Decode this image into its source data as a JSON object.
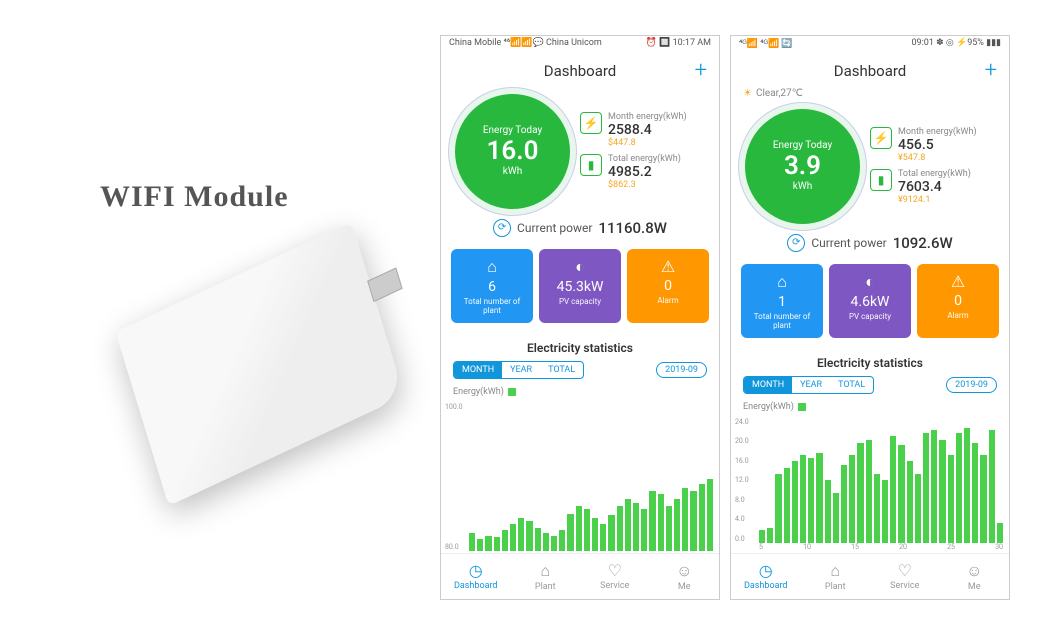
{
  "left": {
    "title": "WIFI Module"
  },
  "phone1": {
    "status_left": "China Mobile  ⁴⁶📶📶💬\nChina Unicom",
    "status_right": "⏰ 🔲 10:17 AM",
    "header": "Dashboard",
    "weather_show": false,
    "weather": "",
    "gauge": {
      "label": "Energy Today",
      "value": "16.0",
      "unit": "kWh"
    },
    "metrics": [
      {
        "icon": "⚡",
        "label": "Month energy(kWh)",
        "value": "2588.4",
        "price": "$447.8"
      },
      {
        "icon": "▮",
        "label": "Total energy(kWh)",
        "value": "4985.2",
        "price": "$862.3"
      }
    ],
    "current_power": {
      "label": "Current power",
      "value": "11160.8W"
    },
    "cards": [
      {
        "icon": "⌂",
        "value": "6",
        "label": "Total number of plant",
        "cls": "blue"
      },
      {
        "icon": "◐",
        "value": "45.3kW",
        "label": "PV capacity",
        "cls": "purple"
      },
      {
        "icon": "⚠",
        "value": "0",
        "label": "Alarm",
        "cls": "orange"
      }
    ],
    "stats_title": "Electricity statistics",
    "tabs": [
      "MONTH",
      "YEAR",
      "TOTAL"
    ],
    "active_tab": 0,
    "date": "2019-09",
    "legend": "Energy(kWh)",
    "y_ticks": [
      "100.0",
      "80.0"
    ],
    "bars": [
      12,
      8,
      10,
      9,
      14,
      18,
      22,
      20,
      15,
      12,
      10,
      14,
      25,
      30,
      28,
      22,
      18,
      24,
      30,
      35,
      32,
      28,
      40,
      38,
      30,
      35,
      42,
      40,
      45,
      48
    ],
    "bar_color": "#4ad04a",
    "nav": [
      "Dashboard",
      "Plant",
      "Service",
      "Me"
    ],
    "nav_active": 0,
    "nav_icons": [
      "◷",
      "⌂",
      "♡",
      "☺"
    ]
  },
  "phone2": {
    "status_left": "⁴ᴳ📶 ⁴ᴳ📶 🔄",
    "status_right": "09:01      ✽ ◎ ⚡95% ▮▮▮",
    "header": "Dashboard",
    "weather_show": true,
    "weather": "Clear,27℃",
    "gauge": {
      "label": "Energy Today",
      "value": "3.9",
      "unit": "kWh"
    },
    "metrics": [
      {
        "icon": "⚡",
        "label": "Month energy(kWh)",
        "value": "456.5",
        "price": "¥547.8"
      },
      {
        "icon": "▮",
        "label": "Total energy(kWh)",
        "value": "7603.4",
        "price": "¥9124.1"
      }
    ],
    "current_power": {
      "label": "Current power",
      "value": "1092.6W"
    },
    "cards": [
      {
        "icon": "⌂",
        "value": "1",
        "label": "Total number of plant",
        "cls": "blue"
      },
      {
        "icon": "◐",
        "value": "4.6kW",
        "label": "PV capacity",
        "cls": "purple"
      },
      {
        "icon": "⚠",
        "value": "0",
        "label": "Alarm",
        "cls": "orange"
      }
    ],
    "stats_title": "Electricity statistics",
    "tabs": [
      "MONTH",
      "YEAR",
      "TOTAL"
    ],
    "active_tab": 0,
    "date": "2019-09",
    "legend": "Energy(kWh)",
    "y_ticks": [
      "24.0",
      "20.0",
      "16.0",
      "12.0",
      "8.0",
      "4.0",
      "0.0"
    ],
    "x_ticks": [
      "5",
      "10",
      "15",
      "20",
      "25",
      "30"
    ],
    "bars": [
      10,
      12,
      55,
      60,
      65,
      70,
      68,
      72,
      50,
      40,
      62,
      70,
      80,
      82,
      55,
      50,
      85,
      78,
      65,
      55,
      88,
      90,
      82,
      70,
      88,
      92,
      80,
      70,
      90,
      16
    ],
    "bar_color": "#4ad04a",
    "nav": [
      "Dashboard",
      "Plant",
      "Service",
      "Me"
    ],
    "nav_active": 0,
    "nav_icons": [
      "◷",
      "⌂",
      "♡",
      "☺"
    ]
  }
}
